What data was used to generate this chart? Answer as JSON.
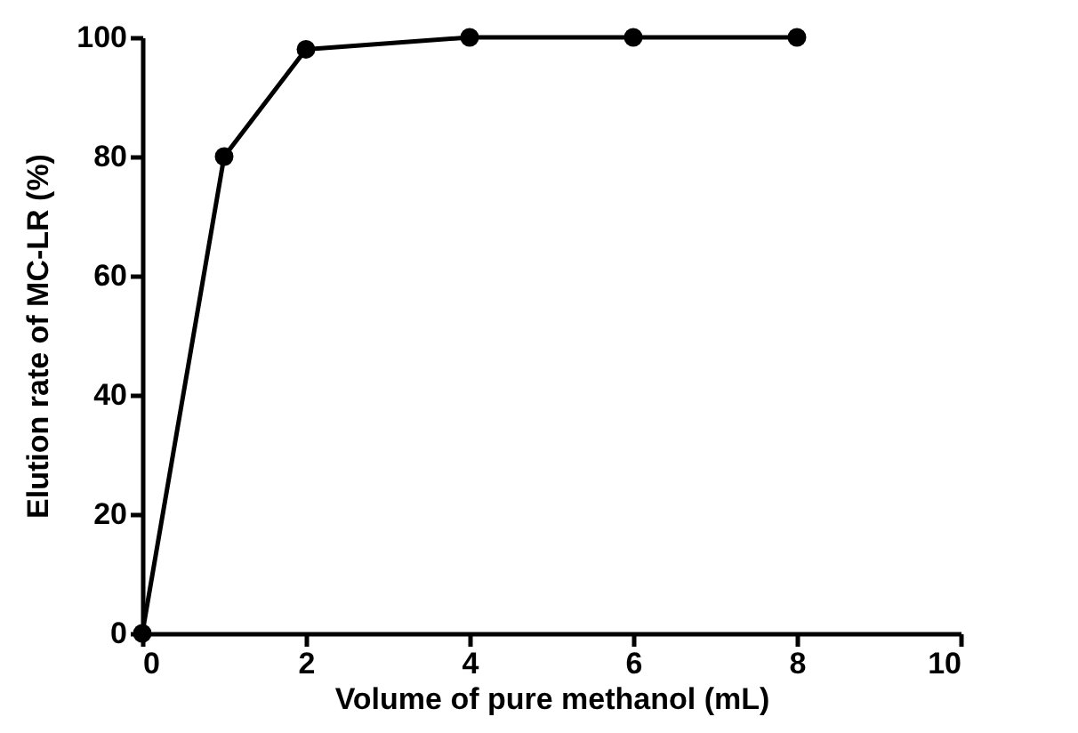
{
  "chart_data": {
    "type": "line",
    "xlabel": "Volume of pure methanol (mL)",
    "ylabel": "Elution rate of MC-LR (%)",
    "x": [
      0,
      1,
      2,
      4,
      6,
      8
    ],
    "series": [
      {
        "color": "#000000",
        "values": [
          0,
          80,
          98,
          100,
          100,
          100
        ]
      }
    ],
    "xlim": [
      0,
      10
    ],
    "xticks": [
      0,
      2,
      4,
      6,
      8,
      10
    ],
    "ylim": [
      0,
      100
    ],
    "yticks": [
      0,
      20,
      40,
      60,
      80,
      100
    ],
    "grid": false,
    "marker": "circle",
    "line_style": "solid"
  }
}
